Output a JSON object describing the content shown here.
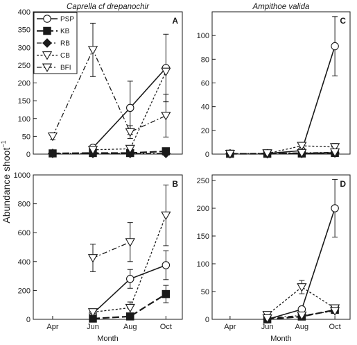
{
  "figure": {
    "ylabel": "Abundance shoot",
    "ylabel_exp": "−1"
  },
  "legend": {
    "entries": [
      {
        "name": "PSP",
        "series": "PSP"
      },
      {
        "name": "KB",
        "series": "KB"
      },
      {
        "name": "RB",
        "series": "RB"
      },
      {
        "name": "CB",
        "series": "CB"
      },
      {
        "name": "BFI",
        "series": "BFI"
      }
    ]
  },
  "series_style": {
    "PSP": {
      "dash": "none",
      "marker": "circle-open",
      "width": 1.6
    },
    "KB": {
      "dash": "10,4",
      "marker": "square-filled",
      "width": 2.2
    },
    "RB": {
      "dash": "7,3,2,3",
      "marker": "diamond-filled",
      "width": 1.3
    },
    "CB": {
      "dash": "3,2.5",
      "marker": "triangle-down-open",
      "width": 1.3
    },
    "BFI": {
      "dash": "7,3,2,3",
      "marker": "triangle-down-open",
      "width": 1.3
    }
  },
  "chart_data": [
    {
      "id": "A",
      "type": "line",
      "title": "Caprella cf drepanochir",
      "letter": "A",
      "xlabel": "",
      "categories": [
        "Apr",
        "Jun",
        "Aug",
        "Oct"
      ],
      "show_xtick_labels": false,
      "ylim": [
        0,
        400
      ],
      "yticks": [
        0,
        50,
        100,
        150,
        200,
        250,
        300,
        350,
        400
      ],
      "show_legend": true,
      "legend_position": "top-left",
      "series": [
        {
          "name": "PSP",
          "values": [
            null,
            18,
            130,
            242
          ],
          "err": [
            null,
            4,
            75,
            95
          ]
        },
        {
          "name": "KB",
          "values": [
            2,
            3,
            3,
            8
          ],
          "err": [
            null,
            null,
            null,
            null
          ]
        },
        {
          "name": "RB",
          "values": [
            2,
            2,
            2,
            2
          ],
          "err": [
            null,
            null,
            null,
            null
          ]
        },
        {
          "name": "CB",
          "values": [
            null,
            12,
            15,
            232
          ],
          "err": [
            null,
            null,
            null,
            null
          ]
        },
        {
          "name": "BFI",
          "values": [
            50,
            293,
            62,
            108
          ],
          "err": [
            10,
            75,
            18,
            60
          ]
        }
      ]
    },
    {
      "id": "C",
      "type": "line",
      "title": "Ampithoe valida",
      "letter": "C",
      "xlabel": "",
      "categories": [
        "Apr",
        "Jun",
        "Aug",
        "Oct"
      ],
      "show_xtick_labels": false,
      "ylim": [
        0,
        120
      ],
      "yticks": [
        0,
        20,
        40,
        60,
        80,
        100
      ],
      "show_legend": false,
      "series": [
        {
          "name": "PSP",
          "values": [
            null,
            0.5,
            3,
            91
          ],
          "err": [
            null,
            null,
            null,
            25
          ]
        },
        {
          "name": "KB",
          "values": [
            0.3,
            0.3,
            0.5,
            1
          ],
          "err": [
            null,
            null,
            null,
            null
          ]
        },
        {
          "name": "RB",
          "values": [
            0.3,
            0.3,
            0.5,
            1
          ],
          "err": [
            null,
            null,
            null,
            null
          ]
        },
        {
          "name": "CB",
          "values": [
            null,
            0.5,
            7,
            6
          ],
          "err": [
            null,
            null,
            3,
            3
          ]
        },
        {
          "name": "BFI",
          "values": [
            0.3,
            0.8,
            1,
            1.5
          ],
          "err": [
            null,
            null,
            null,
            null
          ]
        }
      ]
    },
    {
      "id": "B",
      "type": "line",
      "title": "",
      "letter": "B",
      "xlabel": "Month",
      "categories": [
        "Apr",
        "Jun",
        "Aug",
        "Oct"
      ],
      "show_xtick_labels": true,
      "ylim": [
        0,
        1000
      ],
      "yticks": [
        0,
        200,
        400,
        600,
        800,
        1000
      ],
      "show_legend": false,
      "series": [
        {
          "name": "PSP",
          "values": [
            null,
            40,
            280,
            375
          ],
          "err": [
            null,
            10,
            65,
            100
          ]
        },
        {
          "name": "KB",
          "values": [
            null,
            5,
            20,
            175
          ],
          "err": [
            null,
            null,
            10,
            60
          ]
        },
        {
          "name": "CB",
          "values": [
            null,
            50,
            80,
            720
          ],
          "err": [
            null,
            10,
            40,
            210
          ]
        },
        {
          "name": "BFI",
          "values": [
            null,
            425,
            535,
            null
          ],
          "err": [
            null,
            95,
            135,
            null
          ]
        }
      ]
    },
    {
      "id": "D",
      "type": "line",
      "title": "",
      "letter": "D",
      "xlabel": "Month",
      "categories": [
        "Apr",
        "Jun",
        "Aug",
        "Oct"
      ],
      "show_xtick_labels": true,
      "ylim": [
        0,
        260
      ],
      "yticks": [
        0,
        50,
        100,
        150,
        200,
        250
      ],
      "show_legend": false,
      "series": [
        {
          "name": "PSP",
          "values": [
            null,
            0,
            18,
            200
          ],
          "err": [
            null,
            null,
            5,
            52
          ]
        },
        {
          "name": "KB",
          "values": [
            null,
            0,
            5,
            17
          ],
          "err": [
            null,
            null,
            null,
            5
          ]
        },
        {
          "name": "CB",
          "values": [
            null,
            8,
            58,
            20
          ],
          "err": [
            null,
            3,
            12,
            5
          ]
        },
        {
          "name": "BFI",
          "values": [
            null,
            2,
            7,
            15
          ],
          "err": [
            null,
            null,
            null,
            null
          ]
        }
      ]
    }
  ]
}
